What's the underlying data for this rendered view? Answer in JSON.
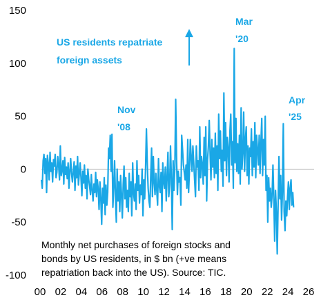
{
  "chart_data": {
    "type": "line",
    "title": "",
    "xlabel": "",
    "ylabel": "",
    "xlim": [
      2000,
      2026.4
    ],
    "ylim": [
      -100,
      150
    ],
    "yticks": [
      150,
      100,
      50,
      0,
      -50,
      -100
    ],
    "xticks": [
      "00",
      "02",
      "04",
      "06",
      "08",
      "10",
      "12",
      "14",
      "16",
      "18",
      "20",
      "22",
      "24",
      "26"
    ],
    "grid": false,
    "legend": "none",
    "line_color": "#1aa7e6",
    "annotations": [
      {
        "lines": [
          "US residents repatriate",
          "foreign assets"
        ],
        "color": "#1aa7e6"
      },
      {
        "lines": [
          "Mar",
          "'20"
        ],
        "color": "#1aa7e6"
      },
      {
        "lines": [
          "Nov",
          "'08"
        ],
        "color": "#1aa7e6"
      },
      {
        "lines": [
          "Apr",
          "'25"
        ],
        "color": "#1aa7e6"
      }
    ],
    "note": [
      "Monthly net purchases of foreign stocks and",
      "bonds by US residents, in $ bn (+ve means",
      "repatriation back into the US). Source: TIC."
    ],
    "series": [
      {
        "x_start": 2000,
        "x_step_months": 1,
        "values": [
          -10,
          -18,
          8,
          14,
          -4,
          10,
          -22,
          13,
          5,
          -10,
          16,
          -2,
          6,
          -12,
          9,
          3,
          14,
          -8,
          -3,
          12,
          4,
          -10,
          22,
          -6,
          -1,
          8,
          -14,
          11,
          -5,
          2,
          -9,
          6,
          -18,
          -3,
          10,
          -4,
          -12,
          -2,
          7,
          -20,
          3,
          -8,
          12,
          -15,
          -4,
          6,
          -9,
          -25,
          -2,
          -13,
          4,
          -18,
          -6,
          -28,
          0,
          -10,
          -16,
          -24,
          -5,
          -20,
          -30,
          -14,
          -22,
          -3,
          -26,
          -10,
          -19,
          -38,
          -12,
          -27,
          -52,
          -18,
          -32,
          -8,
          -43,
          -15,
          -34,
          -22,
          20,
          10,
          32,
          -2,
          33,
          -36,
          -18,
          8,
          -24,
          -50,
          0,
          -30,
          -12,
          -40,
          -6,
          -24,
          -46,
          -14,
          3,
          -28,
          -8,
          -36,
          -20,
          -40,
          -4,
          -26,
          -12,
          -44,
          6,
          -22,
          -30,
          -14,
          -38,
          8,
          -20,
          -6,
          -32,
          -15,
          -24,
          0,
          -44,
          -10,
          -28,
          2,
          38,
          4,
          -18,
          -30,
          -36,
          -8,
          20,
          -26,
          12,
          -12,
          -24,
          -4,
          -20,
          -34,
          10,
          -16,
          -22,
          -3,
          -40,
          6,
          -12,
          -18,
          2,
          -30,
          -8,
          16,
          -26,
          -14,
          22,
          -10,
          -57,
          8,
          -20,
          2,
          66,
          10,
          -24,
          -2,
          -12,
          -8,
          -34,
          32,
          18,
          4,
          -3,
          -10,
          4,
          -18,
          28,
          -22,
          0,
          28,
          10,
          -2,
          22,
          6,
          -10,
          -26,
          22,
          2,
          8,
          -20,
          40,
          -8,
          12,
          4,
          -14,
          30,
          -6,
          40,
          -30,
          8,
          22,
          46,
          14,
          -10,
          28,
          2,
          20,
          -8,
          34,
          -4,
          22,
          -20,
          52,
          10,
          36,
          -2,
          18,
          -16,
          72,
          8,
          44,
          -6,
          30,
          20,
          -12,
          36,
          52,
          4,
          26,
          -18,
          114,
          6,
          48,
          -2,
          24,
          -4,
          32,
          -14,
          58,
          0,
          16,
          54,
          -2,
          28,
          40,
          -6,
          22,
          -14,
          20,
          12,
          38,
          -6,
          26,
          2,
          44,
          -8,
          32,
          18,
          4,
          32,
          -4,
          24,
          48,
          -6,
          28,
          4,
          50,
          -20,
          -6,
          -50,
          -8,
          -30,
          -18,
          -36,
          -24,
          4,
          -26,
          -68,
          -20,
          -40,
          -80,
          -32,
          12,
          -28,
          -6,
          -48,
          -22,
          43,
          -40,
          -58,
          -30,
          -44,
          -26,
          -12,
          -38,
          -18,
          -10,
          -34,
          -22,
          -36
        ]
      }
    ]
  }
}
